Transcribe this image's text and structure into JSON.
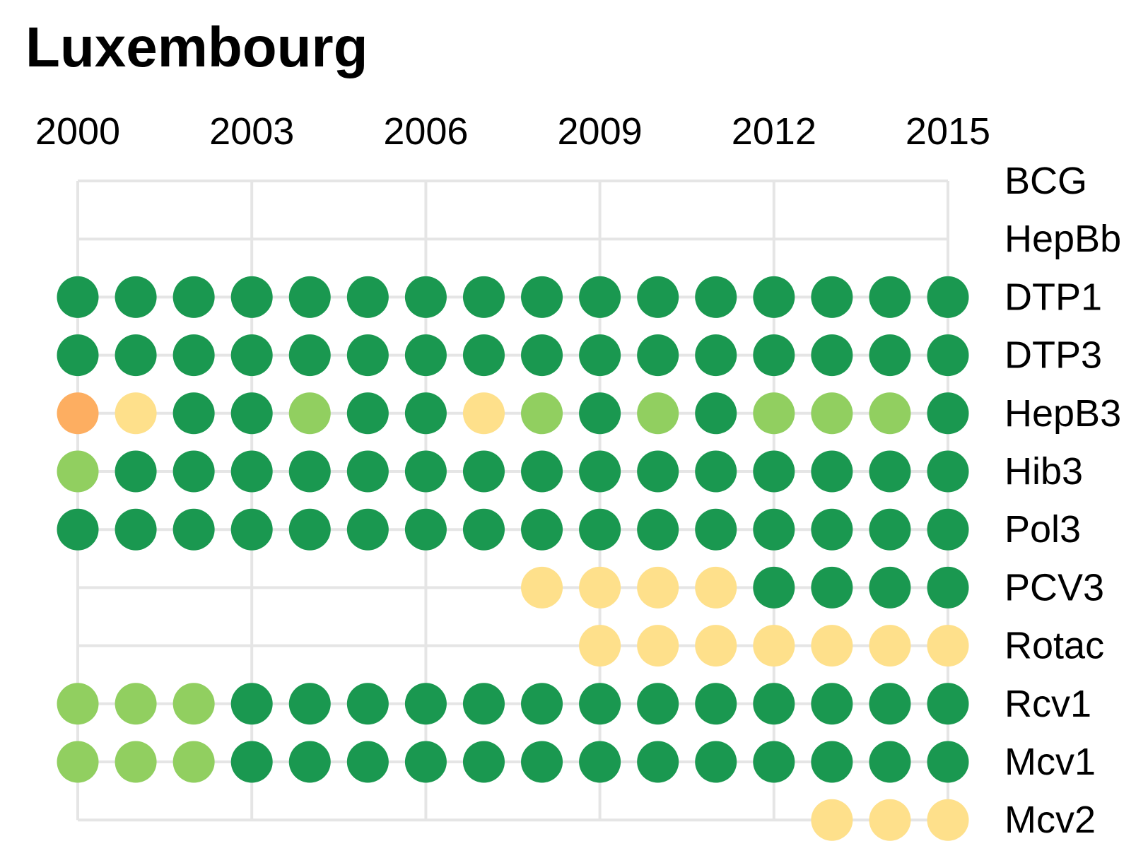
{
  "chart_data": {
    "type": "scatter",
    "title": "Luxembourg",
    "x_ticks": [
      2000,
      2003,
      2006,
      2009,
      2012,
      2015
    ],
    "years": [
      2000,
      2001,
      2002,
      2003,
      2004,
      2005,
      2006,
      2007,
      2008,
      2009,
      2010,
      2011,
      2012,
      2013,
      2014,
      2015
    ],
    "xlim": [
      2000,
      2015
    ],
    "colors": {
      "dark_green": "#1a9850",
      "light_green": "#91cf60",
      "pale_yellow": "#fee08b",
      "orange": "#fdae61"
    },
    "rows": [
      {
        "name": "BCG",
        "values": [
          null,
          null,
          null,
          null,
          null,
          null,
          null,
          null,
          null,
          null,
          null,
          null,
          null,
          null,
          null,
          null
        ]
      },
      {
        "name": "HepBb",
        "values": [
          null,
          null,
          null,
          null,
          null,
          null,
          null,
          null,
          null,
          null,
          null,
          null,
          null,
          null,
          null,
          null
        ]
      },
      {
        "name": "DTP1",
        "values": [
          "dark_green",
          "dark_green",
          "dark_green",
          "dark_green",
          "dark_green",
          "dark_green",
          "dark_green",
          "dark_green",
          "dark_green",
          "dark_green",
          "dark_green",
          "dark_green",
          "dark_green",
          "dark_green",
          "dark_green",
          "dark_green"
        ]
      },
      {
        "name": "DTP3",
        "values": [
          "dark_green",
          "dark_green",
          "dark_green",
          "dark_green",
          "dark_green",
          "dark_green",
          "dark_green",
          "dark_green",
          "dark_green",
          "dark_green",
          "dark_green",
          "dark_green",
          "dark_green",
          "dark_green",
          "dark_green",
          "dark_green"
        ]
      },
      {
        "name": "HepB3",
        "values": [
          "orange",
          "pale_yellow",
          "dark_green",
          "dark_green",
          "light_green",
          "dark_green",
          "dark_green",
          "pale_yellow",
          "light_green",
          "dark_green",
          "light_green",
          "dark_green",
          "light_green",
          "light_green",
          "light_green",
          "dark_green"
        ]
      },
      {
        "name": "Hib3",
        "values": [
          "light_green",
          "dark_green",
          "dark_green",
          "dark_green",
          "dark_green",
          "dark_green",
          "dark_green",
          "dark_green",
          "dark_green",
          "dark_green",
          "dark_green",
          "dark_green",
          "dark_green",
          "dark_green",
          "dark_green",
          "dark_green"
        ]
      },
      {
        "name": "Pol3",
        "values": [
          "dark_green",
          "dark_green",
          "dark_green",
          "dark_green",
          "dark_green",
          "dark_green",
          "dark_green",
          "dark_green",
          "dark_green",
          "dark_green",
          "dark_green",
          "dark_green",
          "dark_green",
          "dark_green",
          "dark_green",
          "dark_green"
        ]
      },
      {
        "name": "PCV3",
        "values": [
          null,
          null,
          null,
          null,
          null,
          null,
          null,
          null,
          "pale_yellow",
          "pale_yellow",
          "pale_yellow",
          "pale_yellow",
          "dark_green",
          "dark_green",
          "dark_green",
          "dark_green"
        ]
      },
      {
        "name": "Rotac",
        "values": [
          null,
          null,
          null,
          null,
          null,
          null,
          null,
          null,
          null,
          "pale_yellow",
          "pale_yellow",
          "pale_yellow",
          "pale_yellow",
          "pale_yellow",
          "pale_yellow",
          "pale_yellow"
        ]
      },
      {
        "name": "Rcv1",
        "values": [
          "light_green",
          "light_green",
          "light_green",
          "dark_green",
          "dark_green",
          "dark_green",
          "dark_green",
          "dark_green",
          "dark_green",
          "dark_green",
          "dark_green",
          "dark_green",
          "dark_green",
          "dark_green",
          "dark_green",
          "dark_green"
        ]
      },
      {
        "name": "Mcv1",
        "values": [
          "light_green",
          "light_green",
          "light_green",
          "dark_green",
          "dark_green",
          "dark_green",
          "dark_green",
          "dark_green",
          "dark_green",
          "dark_green",
          "dark_green",
          "dark_green",
          "dark_green",
          "dark_green",
          "dark_green",
          "dark_green"
        ]
      },
      {
        "name": "Mcv2",
        "values": [
          null,
          null,
          null,
          null,
          null,
          null,
          null,
          null,
          null,
          null,
          null,
          null,
          null,
          "pale_yellow",
          "pale_yellow",
          "pale_yellow"
        ]
      }
    ]
  }
}
